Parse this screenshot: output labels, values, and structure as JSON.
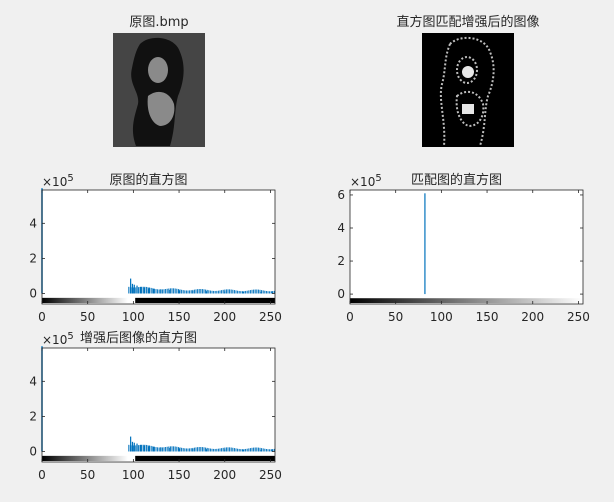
{
  "window": {
    "background": "#f0f0f0"
  },
  "images": [
    {
      "title": "原图.bmp"
    },
    {
      "title": "直方图匹配增强后的图像"
    }
  ],
  "chart_data": [
    {
      "type": "bar",
      "title": "原图的直方图",
      "xlabel": "",
      "ylabel": "",
      "xlim": [
        0,
        255
      ],
      "ylim": [
        -0.6,
        5.9
      ],
      "y_exponent": "5",
      "xticks": [
        "0",
        "50",
        "100",
        "150",
        "200",
        "250"
      ],
      "yticks": [
        "0",
        "2",
        "4"
      ],
      "bar_color": "#0072bd",
      "colorbar": {
        "gradient_from": 0,
        "gradient_to": 94,
        "white_from": 94,
        "white_to": 102
      },
      "series": [
        {
          "values": [
            [
              0,
              6.0
            ],
            [
              97,
              0.85
            ],
            [
              99,
              0.55
            ],
            [
              101,
              0.5
            ],
            [
              104,
              0.45
            ],
            [
              108,
              0.38
            ],
            [
              112,
              0.34
            ],
            [
              117,
              0.3
            ],
            [
              122,
              0.27
            ],
            [
              130,
              0.24
            ],
            [
              140,
              0.2
            ],
            [
              150,
              0.18
            ],
            [
              165,
              0.15
            ],
            [
              180,
              0.13
            ],
            [
              200,
              0.11
            ],
            [
              220,
              0.1
            ],
            [
              240,
              0.09
            ],
            [
              252,
              0.12
            ]
          ]
        }
      ],
      "fill_range": [
        95,
        255
      ]
    },
    {
      "type": "bar",
      "title": "匹配图的直方图",
      "xlabel": "",
      "ylabel": "",
      "xlim": [
        0,
        255
      ],
      "ylim": [
        -0.6,
        6.3
      ],
      "y_exponent": "5",
      "xticks": [
        "0",
        "50",
        "100",
        "150",
        "200",
        "250"
      ],
      "yticks": [
        "0",
        "2",
        "4",
        "6"
      ],
      "bar_color": "#0072bd",
      "colorbar": {
        "gradient_from": 0,
        "gradient_to": 255,
        "white_from": 255,
        "white_to": 255
      },
      "series": [
        {
          "values": [
            [
              82,
              6.1
            ]
          ]
        }
      ],
      "fill_range": []
    },
    {
      "type": "bar",
      "title": "增强后图像的直方图",
      "xlabel": "",
      "ylabel": "",
      "xlim": [
        0,
        255
      ],
      "ylim": [
        -0.6,
        5.9
      ],
      "y_exponent": "5",
      "xticks": [
        "0",
        "50",
        "100",
        "150",
        "200",
        "250"
      ],
      "yticks": [
        "0",
        "2",
        "4"
      ],
      "bar_color": "#0072bd",
      "colorbar": {
        "gradient_from": 0,
        "gradient_to": 94,
        "white_from": 94,
        "white_to": 102
      },
      "series": [
        {
          "values": [
            [
              0,
              6.0
            ],
            [
              97,
              0.85
            ],
            [
              99,
              0.55
            ],
            [
              101,
              0.5
            ],
            [
              104,
              0.45
            ],
            [
              108,
              0.38
            ],
            [
              112,
              0.34
            ],
            [
              117,
              0.3
            ],
            [
              122,
              0.27
            ],
            [
              130,
              0.24
            ],
            [
              140,
              0.2
            ],
            [
              150,
              0.18
            ],
            [
              165,
              0.15
            ],
            [
              180,
              0.13
            ],
            [
              200,
              0.11
            ],
            [
              220,
              0.1
            ],
            [
              240,
              0.09
            ],
            [
              252,
              0.12
            ]
          ]
        }
      ],
      "fill_range": [
        95,
        255
      ]
    }
  ]
}
